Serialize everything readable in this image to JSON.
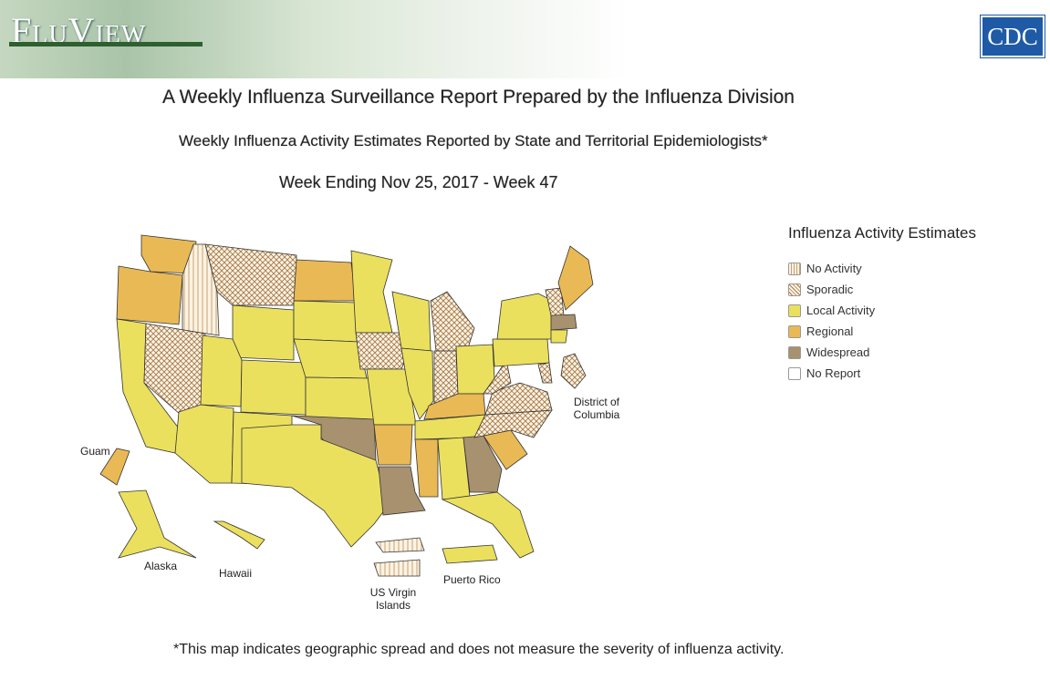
{
  "header": {
    "brand": "FluView",
    "logo": "CDC"
  },
  "titles": {
    "main": "A Weekly Influenza Surveillance Report Prepared by the Influenza Division",
    "subtitle": "Weekly Influenza Activity Estimates Reported by State and Territorial Epidemiologists*",
    "week": "Week Ending Nov 25, 2017 - Week 47"
  },
  "legend": {
    "title": "Influenza Activity Estimates",
    "items": [
      "No Activity",
      "Sporadic",
      "Local Activity",
      "Regional",
      "Widespread",
      "No Report"
    ]
  },
  "map_labels": {
    "guam": "Guam",
    "alaska": "Alaska",
    "hawaii": "Hawaii",
    "usvi": "US Virgin Islands",
    "puerto_rico": "Puerto Rico",
    "dc": "District of Columbia"
  },
  "footnote": "*This map indicates geographic spread and does not measure the severity of influenza activity."
}
